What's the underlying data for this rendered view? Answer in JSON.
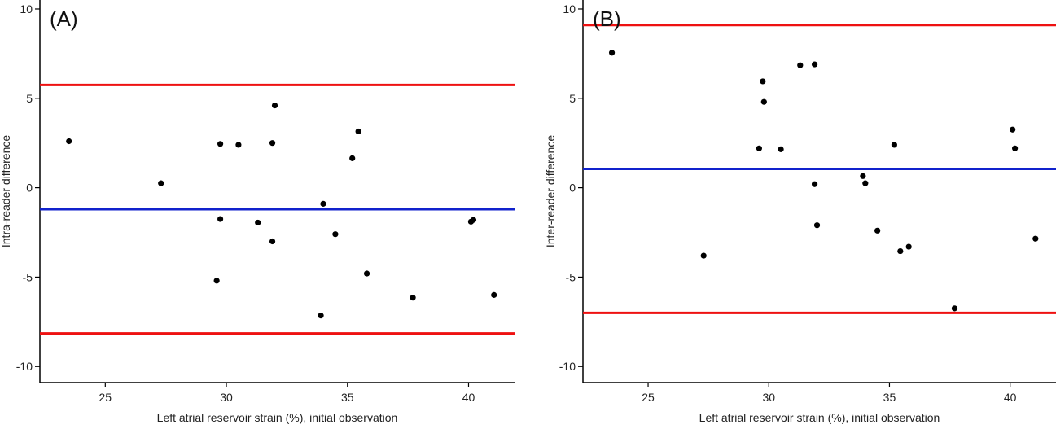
{
  "chart_data": [
    {
      "type": "scatter",
      "panel_label": "(A)",
      "xlabel": "Left atrial reservoir strain (%), initial observation",
      "ylabel": "Intra-reader difference",
      "xlim": [
        22.3,
        41.9
      ],
      "ylim": [
        -10.9,
        10.5
      ],
      "xticks": [
        25,
        30,
        35,
        40
      ],
      "yticks": [
        -10,
        -5,
        0,
        5,
        10
      ],
      "grid": false,
      "reference_lines": [
        {
          "role": "upper-limit",
          "y": 5.75,
          "color": "#ee1111"
        },
        {
          "role": "mean",
          "y": -1.2,
          "color": "#1122cc"
        },
        {
          "role": "lower-limit",
          "y": -8.15,
          "color": "#ee1111"
        }
      ],
      "points": [
        {
          "x": 23.5,
          "y": 2.6
        },
        {
          "x": 27.3,
          "y": 0.25
        },
        {
          "x": 29.6,
          "y": -5.2
        },
        {
          "x": 29.75,
          "y": 2.45
        },
        {
          "x": 29.75,
          "y": -1.75
        },
        {
          "x": 30.5,
          "y": 2.4
        },
        {
          "x": 31.3,
          "y": -1.95
        },
        {
          "x": 31.9,
          "y": 2.5
        },
        {
          "x": 31.9,
          "y": -3.0
        },
        {
          "x": 32.0,
          "y": 4.6
        },
        {
          "x": 33.9,
          "y": -7.15
        },
        {
          "x": 34.0,
          "y": -0.9
        },
        {
          "x": 34.5,
          "y": -2.6
        },
        {
          "x": 35.2,
          "y": 1.65
        },
        {
          "x": 35.45,
          "y": 3.15
        },
        {
          "x": 35.8,
          "y": -4.8
        },
        {
          "x": 37.7,
          "y": -6.15
        },
        {
          "x": 40.1,
          "y": -1.9
        },
        {
          "x": 40.2,
          "y": -1.8
        },
        {
          "x": 41.05,
          "y": -6.0
        }
      ]
    },
    {
      "type": "scatter",
      "panel_label": "(B)",
      "xlabel": "Left atrial reservoir strain (%), initial observation",
      "ylabel": "Inter-reader difference",
      "xlim": [
        22.3,
        41.9
      ],
      "ylim": [
        -10.9,
        10.5
      ],
      "xticks": [
        25,
        30,
        35,
        40
      ],
      "yticks": [
        -10,
        -5,
        0,
        5,
        10
      ],
      "grid": false,
      "reference_lines": [
        {
          "role": "upper-limit",
          "y": 9.1,
          "color": "#ee1111"
        },
        {
          "role": "mean",
          "y": 1.05,
          "color": "#1122cc"
        },
        {
          "role": "lower-limit",
          "y": -7.0,
          "color": "#ee1111"
        }
      ],
      "points": [
        {
          "x": 23.5,
          "y": 7.55
        },
        {
          "x": 27.3,
          "y": -3.8
        },
        {
          "x": 29.6,
          "y": 2.2
        },
        {
          "x": 29.75,
          "y": 5.95
        },
        {
          "x": 29.8,
          "y": 4.8
        },
        {
          "x": 30.5,
          "y": 2.15
        },
        {
          "x": 31.3,
          "y": 6.85
        },
        {
          "x": 31.9,
          "y": 6.9
        },
        {
          "x": 31.9,
          "y": 0.2
        },
        {
          "x": 32.0,
          "y": -2.1
        },
        {
          "x": 33.9,
          "y": 0.65
        },
        {
          "x": 34.0,
          "y": 0.25
        },
        {
          "x": 34.5,
          "y": -2.4
        },
        {
          "x": 35.2,
          "y": 2.4
        },
        {
          "x": 35.45,
          "y": -3.55
        },
        {
          "x": 35.8,
          "y": -3.3
        },
        {
          "x": 37.7,
          "y": -6.75
        },
        {
          "x": 40.1,
          "y": 3.25
        },
        {
          "x": 40.2,
          "y": 2.2
        },
        {
          "x": 41.05,
          "y": -2.85
        }
      ]
    }
  ]
}
